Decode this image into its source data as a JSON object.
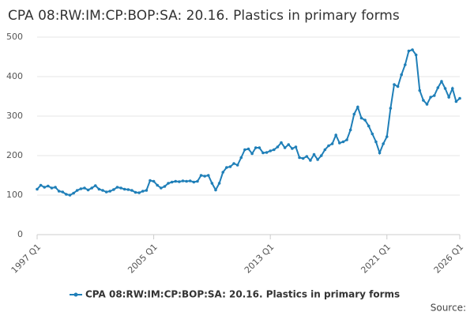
{
  "chart_data": {
    "type": "line",
    "title": "CPA 08:RW:IM:CP:BOP:SA: 20.16. Plastics in primary forms",
    "source": "Source:",
    "categories": [
      "1997 Q1",
      null,
      null,
      null,
      null,
      null,
      null,
      null,
      null,
      null,
      null,
      null,
      null,
      null,
      null,
      null,
      null,
      null,
      null,
      null,
      null,
      null,
      null,
      null,
      null,
      null,
      null,
      null,
      null,
      null,
      null,
      null,
      "2005 Q1",
      null,
      null,
      null,
      null,
      null,
      null,
      null,
      null,
      null,
      null,
      null,
      null,
      null,
      null,
      null,
      null,
      null,
      null,
      null,
      null,
      null,
      null,
      null,
      null,
      null,
      null,
      null,
      null,
      null,
      null,
      null,
      "2013 Q1",
      null,
      null,
      null,
      null,
      null,
      null,
      null,
      null,
      null,
      null,
      null,
      null,
      null,
      null,
      null,
      null,
      null,
      null,
      null,
      null,
      null,
      null,
      null,
      null,
      null,
      null,
      null,
      null,
      null,
      null,
      null,
      "2021 Q1",
      null,
      null,
      null,
      null,
      null,
      null,
      null,
      null,
      null,
      null,
      null,
      null,
      null,
      null,
      null,
      null,
      null,
      null,
      null,
      "2026 Q1"
    ],
    "series": [
      {
        "name": "CPA 08:RW:IM:CP:BOP:SA: 20.16. Plastics in primary forms",
        "color": "#1f7fb8",
        "values": [
          115,
          125,
          120,
          123,
          118,
          120,
          110,
          108,
          102,
          100,
          105,
          112,
          116,
          118,
          113,
          118,
          124,
          115,
          112,
          108,
          110,
          114,
          120,
          118,
          115,
          114,
          112,
          107,
          106,
          110,
          112,
          137,
          135,
          125,
          118,
          122,
          130,
          133,
          135,
          134,
          136,
          135,
          136,
          133,
          135,
          150,
          148,
          150,
          130,
          113,
          130,
          158,
          170,
          172,
          180,
          176,
          195,
          215,
          217,
          205,
          220,
          220,
          207,
          208,
          212,
          215,
          222,
          233,
          220,
          228,
          218,
          222,
          195,
          193,
          198,
          188,
          203,
          190,
          200,
          215,
          225,
          230,
          252,
          232,
          235,
          240,
          265,
          305,
          323,
          295,
          290,
          275,
          255,
          235,
          207,
          230,
          248,
          320,
          380,
          375,
          405,
          430,
          465,
          468,
          455,
          365,
          340,
          330,
          348,
          352,
          372,
          388,
          370,
          348,
          370,
          337,
          345
        ]
      }
    ],
    "ylim": [
      0,
      500
    ],
    "yticks": [
      0,
      100,
      200,
      300,
      400,
      500
    ],
    "grid": true
  }
}
